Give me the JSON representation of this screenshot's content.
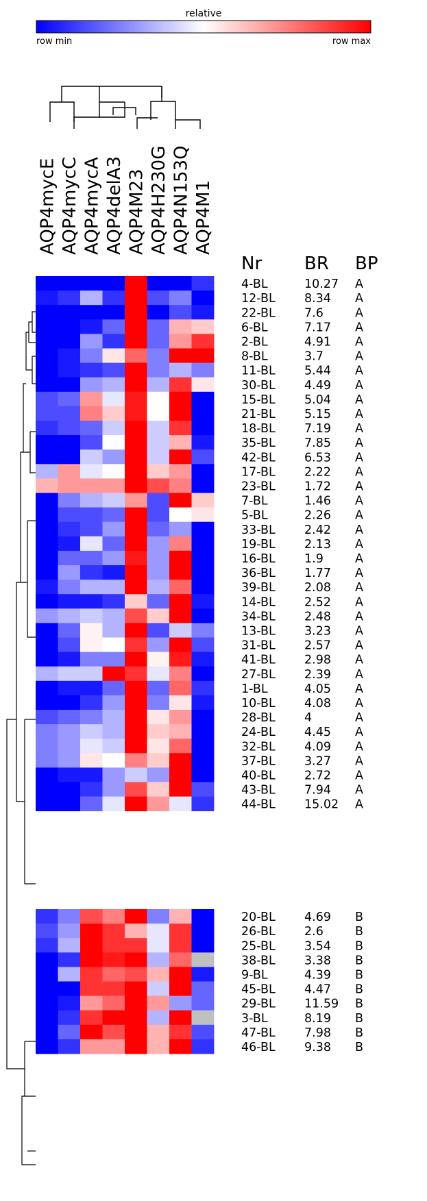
{
  "chart_data": {
    "type": "heatmap",
    "colorbar": {
      "title": "relative",
      "min_label": "row min",
      "max_label": "row max",
      "colors": [
        "#0000ff",
        "#ffffff",
        "#ff0000"
      ]
    },
    "columns": [
      "AQP4mycE",
      "AQP4mycC",
      "AQP4mycA",
      "AQP4delA3",
      "AQP4M23",
      "AQP4H230G",
      "AQP4N153Q",
      "AQP4M1"
    ],
    "table_headers": [
      "Nr",
      "BR",
      "BP"
    ],
    "missing_color": "#c0c0c0",
    "groups": [
      {
        "name": "A",
        "rows": [
          {
            "nr": "4-BL",
            "br": "10.27",
            "bp": "A",
            "values": [
              -1,
              -1,
              -1,
              -1,
              1,
              -1,
              -1,
              -0.8
            ]
          },
          {
            "nr": "12-BL",
            "br": "8.34",
            "bp": "A",
            "values": [
              -0.9,
              -0.8,
              -0.3,
              -0.8,
              1,
              -0.7,
              -0.5,
              -1
            ]
          },
          {
            "nr": "22-BL",
            "br": "7.6",
            "bp": "A",
            "values": [
              -1,
              -1,
              -1,
              -1,
              1,
              -1,
              -0.7,
              -0.9
            ]
          },
          {
            "nr": "6-BL",
            "br": "7.17",
            "bp": "A",
            "values": [
              -1,
              -1,
              -0.9,
              -0.6,
              1,
              -0.6,
              0.3,
              0.2
            ]
          },
          {
            "nr": "2-BL",
            "br": "4.91",
            "bp": "A",
            "values": [
              -1,
              -1,
              -0.4,
              -0.8,
              1,
              -0.6,
              0.4,
              0.8
            ]
          },
          {
            "nr": "8-BL",
            "br": "3.7",
            "bp": "A",
            "values": [
              -1,
              -0.9,
              -0.5,
              0.1,
              0.6,
              -0.5,
              1,
              1
            ]
          },
          {
            "nr": "11-BL",
            "br": "5.44",
            "bp": "A",
            "values": [
              -1,
              -0.9,
              -0.8,
              -0.7,
              1,
              -0.5,
              -0.3,
              -0.5
            ]
          },
          {
            "nr": "30-BL",
            "br": "4.49",
            "bp": "A",
            "values": [
              -1,
              -1,
              -0.4,
              -0.3,
              1,
              -0.3,
              0.8,
              0.1
            ]
          },
          {
            "nr": "15-BL",
            "br": "5.04",
            "bp": "A",
            "values": [
              -0.7,
              -0.6,
              0.4,
              -0.1,
              0.9,
              0,
              1,
              -1
            ]
          },
          {
            "nr": "21-BL",
            "br": "5.15",
            "bp": "A",
            "values": [
              -0.7,
              -0.7,
              0.5,
              0.2,
              0.9,
              0,
              1,
              -1
            ]
          },
          {
            "nr": "18-BL",
            "br": "7.19",
            "bp": "A",
            "values": [
              -0.8,
              -0.7,
              -0.6,
              -0.2,
              1,
              -0.2,
              0.8,
              -1
            ]
          },
          {
            "nr": "35-BL",
            "br": "7.85",
            "bp": "A",
            "values": [
              -1,
              -1,
              -0.7,
              0,
              1,
              -0.2,
              0.3,
              -0.9
            ]
          },
          {
            "nr": "42-BL",
            "br": "6.53",
            "bp": "A",
            "values": [
              -1,
              -1,
              -0.2,
              -0.4,
              1,
              -0.2,
              1,
              -0.7
            ]
          },
          {
            "nr": "17-BL",
            "br": "2.22",
            "bp": "A",
            "values": [
              -0.3,
              0.4,
              -0.1,
              0,
              1,
              0.2,
              0.4,
              -1
            ]
          },
          {
            "nr": "23-BL",
            "br": "1.72",
            "bp": "A",
            "values": [
              0.3,
              0.4,
              0.4,
              0.4,
              1,
              0.7,
              0.5,
              -1
            ]
          },
          {
            "nr": "7-BL",
            "br": "1.46",
            "bp": "A",
            "values": [
              -1,
              -0.5,
              -0.3,
              -0.2,
              0.4,
              -0.7,
              1,
              0.2
            ]
          },
          {
            "nr": "5-BL",
            "br": "2.26",
            "bp": "A",
            "values": [
              -1,
              -0.7,
              -0.7,
              -0.6,
              1,
              -0.7,
              0,
              0.1
            ]
          },
          {
            "nr": "33-BL",
            "br": "2.42",
            "bp": "A",
            "values": [
              -1,
              -0.8,
              -0.7,
              -0.4,
              1,
              -0.6,
              -0.4,
              -1
            ]
          },
          {
            "nr": "19-BL",
            "br": "2.13",
            "bp": "A",
            "values": [
              -1,
              -0.9,
              -0.1,
              -0.6,
              1,
              -0.4,
              0.5,
              -1
            ]
          },
          {
            "nr": "16-BL",
            "br": "1.9",
            "bp": "A",
            "values": [
              -1,
              -0.6,
              -0.6,
              -0.4,
              0.9,
              -0.4,
              1,
              -1
            ]
          },
          {
            "nr": "36-BL",
            "br": "1.77",
            "bp": "A",
            "values": [
              -1,
              -0.4,
              -0.8,
              -0.9,
              1,
              -0.4,
              1,
              -1
            ]
          },
          {
            "nr": "39-BL",
            "br": "2.08",
            "bp": "A",
            "values": [
              -0.9,
              -0.5,
              -0.3,
              -0.3,
              1,
              -0.3,
              0.6,
              -1
            ]
          },
          {
            "nr": "14-BL",
            "br": "2.52",
            "bp": "A",
            "values": [
              -1,
              -0.9,
              -0.9,
              -0.8,
              0.2,
              -0.6,
              1,
              -0.9
            ]
          },
          {
            "nr": "34-BL",
            "br": "2.48",
            "bp": "A",
            "values": [
              -0.4,
              -0.3,
              -0.2,
              -0.3,
              0.7,
              0.2,
              1,
              -1
            ]
          },
          {
            "nr": "13-BL",
            "br": "3.23",
            "bp": "A",
            "values": [
              -1,
              -0.6,
              0.05,
              -0.3,
              1,
              -0.7,
              -0.2,
              -0.5
            ]
          },
          {
            "nr": "31-BL",
            "br": "2.57",
            "bp": "A",
            "values": [
              -1,
              -0.7,
              0.05,
              0,
              0.8,
              -0.4,
              1,
              -0.7
            ]
          },
          {
            "nr": "41-BL",
            "br": "2.98",
            "bp": "A",
            "values": [
              -1,
              -0.9,
              -0.5,
              -0.5,
              1,
              0.05,
              0.9,
              -0.9
            ]
          },
          {
            "nr": "27-BL",
            "br": "2.39",
            "bp": "A",
            "values": [
              -0.3,
              -0.2,
              -0.2,
              1,
              0.8,
              -0.1,
              0.5,
              -1
            ]
          },
          {
            "nr": "1-BL",
            "br": "4.05",
            "bp": "A",
            "values": [
              -1,
              -0.9,
              -0.9,
              -0.6,
              1,
              -0.6,
              0.6,
              -0.8
            ]
          },
          {
            "nr": "10-BL",
            "br": "4.08",
            "bp": "A",
            "values": [
              -1,
              -1,
              -0.8,
              -0.4,
              1,
              -0.5,
              0.1,
              -0.9
            ]
          },
          {
            "nr": "28-BL",
            "br": "4",
            "bp": "A",
            "values": [
              -0.7,
              -0.6,
              -0.5,
              -0.3,
              1,
              0.1,
              0.4,
              -1
            ]
          },
          {
            "nr": "24-BL",
            "br": "4.45",
            "bp": "A",
            "values": [
              -0.5,
              -0.4,
              -0.2,
              -0.3,
              1,
              0.2,
              0.3,
              -1
            ]
          },
          {
            "nr": "32-BL",
            "br": "4.09",
            "bp": "A",
            "values": [
              -0.5,
              -0.4,
              -0.1,
              -0.2,
              1,
              0.1,
              0.6,
              -1
            ]
          },
          {
            "nr": "37-BL",
            "br": "3.27",
            "bp": "A",
            "values": [
              -0.5,
              -0.4,
              0.1,
              0,
              0.5,
              0.2,
              1,
              -1
            ]
          },
          {
            "nr": "40-BL",
            "br": "2.72",
            "bp": "A",
            "values": [
              -1,
              -0.9,
              -0.9,
              -0.4,
              -0.2,
              -0.4,
              1,
              -1
            ]
          },
          {
            "nr": "43-BL",
            "br": "7.94",
            "bp": "A",
            "values": [
              -1,
              -1,
              -0.8,
              -0.4,
              0.7,
              0.2,
              1,
              -0.7
            ]
          },
          {
            "nr": "44-BL",
            "br": "15.02",
            "bp": "A",
            "values": [
              -1,
              -1,
              -0.6,
              -0.1,
              1,
              0.4,
              -0.1,
              -0.8
            ]
          }
        ]
      },
      {
        "name": "B",
        "rows": [
          {
            "nr": "20-BL",
            "br": "4.69",
            "bp": "B",
            "values": [
              -0.8,
              -0.5,
              0.7,
              0.5,
              1,
              -0.5,
              0.3,
              -1
            ]
          },
          {
            "nr": "26-BL",
            "br": "2.6",
            "bp": "B",
            "values": [
              -0.7,
              -0.4,
              1,
              0.8,
              0.3,
              -0.1,
              0.8,
              -1
            ]
          },
          {
            "nr": "25-BL",
            "br": "3.54",
            "bp": "B",
            "values": [
              -0.8,
              -0.3,
              1,
              0.8,
              0.8,
              -0.1,
              0.8,
              -1
            ]
          },
          {
            "nr": "38-BL",
            "br": "3.38",
            "bp": "B",
            "values": [
              -1,
              -0.8,
              1,
              0.9,
              1,
              -0.3,
              0.6,
              null
            ]
          },
          {
            "nr": "9-BL",
            "br": "4.39",
            "bp": "B",
            "values": [
              -1,
              -0.3,
              0.8,
              0.6,
              0.7,
              0.3,
              1,
              -0.9
            ]
          },
          {
            "nr": "45-BL",
            "br": "4.47",
            "bp": "B",
            "values": [
              -1,
              -1,
              0.8,
              0.8,
              1,
              -0.2,
              1,
              -0.6
            ]
          },
          {
            "nr": "29-BL",
            "br": "11.59",
            "bp": "B",
            "values": [
              -1,
              -0.9,
              0.4,
              0.6,
              1,
              0.4,
              -0.4,
              -0.6
            ]
          },
          {
            "nr": "3-BL",
            "br": "8.19",
            "bp": "B",
            "values": [
              -1,
              -0.8,
              0.8,
              1,
              1,
              -0.3,
              1,
              null
            ]
          },
          {
            "nr": "47-BL",
            "br": "7.98",
            "bp": "B",
            "values": [
              -1,
              -0.6,
              1,
              0.7,
              1,
              0.3,
              0.8,
              -0.7
            ]
          },
          {
            "nr": "46-BL",
            "br": "9.38",
            "bp": "B",
            "values": [
              -1,
              -0.8,
              0.4,
              0.4,
              1,
              0.3,
              1,
              -0.8
            ]
          }
        ]
      }
    ]
  }
}
